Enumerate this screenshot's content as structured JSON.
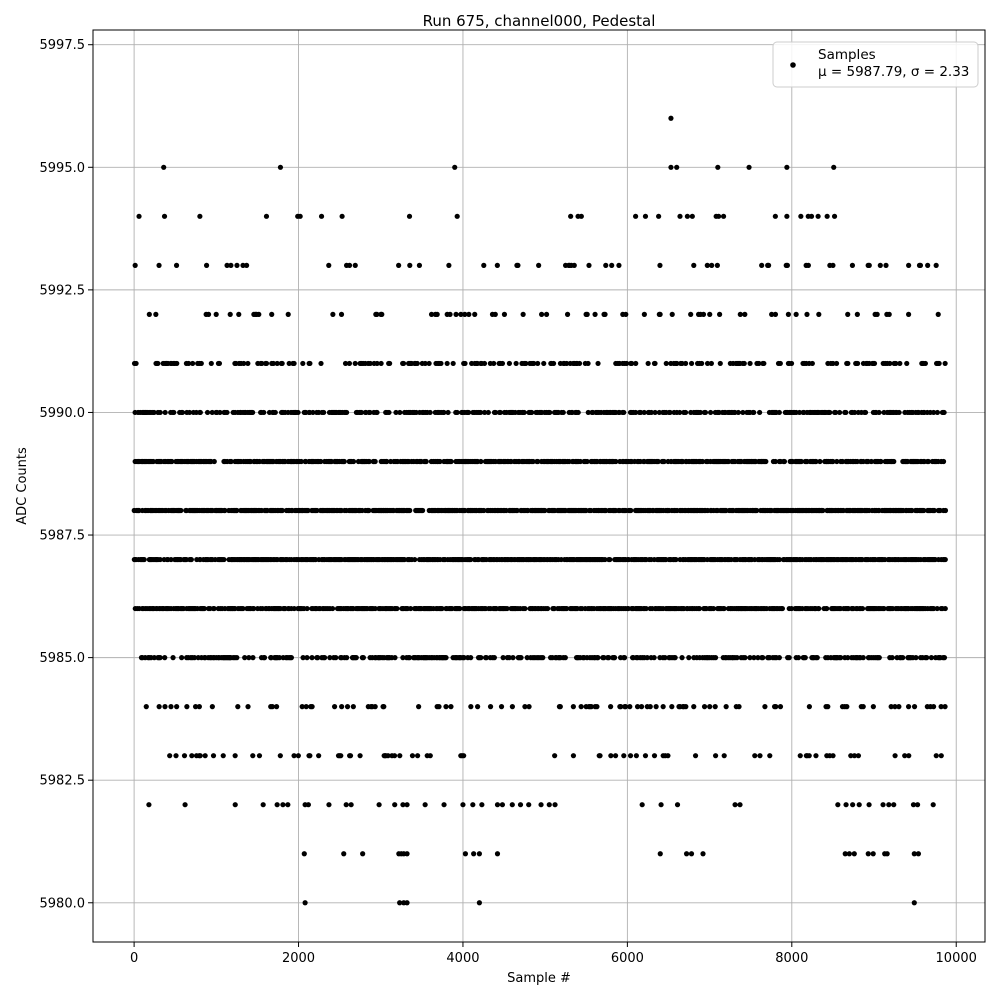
{
  "chart_data": {
    "type": "scatter",
    "title": "Run 675, channel000, Pedestal",
    "xlabel": "Sample #",
    "ylabel": "ADC Counts",
    "xlim": [
      -500,
      10350
    ],
    "ylim": [
      5979.2,
      5997.8
    ],
    "xticks": [
      0,
      2000,
      4000,
      6000,
      8000,
      10000
    ],
    "xtick_labels": [
      "0",
      "2000",
      "4000",
      "6000",
      "8000",
      "10000"
    ],
    "yticks": [
      5980.0,
      5982.5,
      5985.0,
      5987.5,
      5990.0,
      5992.5,
      5995.0,
      5997.5
    ],
    "ytick_labels": [
      "5980.0",
      "5982.5",
      "5985.0",
      "5987.5",
      "5990.0",
      "5992.5",
      "5995.0",
      "5997.5"
    ],
    "grid": true,
    "legend_position": "top-right",
    "marker_color": "#000000",
    "series": [
      {
        "name": "Samples",
        "stats_label": "μ = 5987.79, σ = 2.33",
        "x_range": [
          0,
          9870
        ],
        "points": [
          {
            "x": 2080,
            "y": 5980
          },
          {
            "x": 3230,
            "y": 5980
          },
          {
            "x": 3280,
            "y": 5980
          },
          {
            "x": 3320,
            "y": 5980
          },
          {
            "x": 4200,
            "y": 5980
          },
          {
            "x": 9490,
            "y": 5980
          },
          {
            "x": 2070,
            "y": 5981
          },
          {
            "x": 2550,
            "y": 5981
          },
          {
            "x": 2780,
            "y": 5981
          },
          {
            "x": 3220,
            "y": 5981
          },
          {
            "x": 3250,
            "y": 5981
          },
          {
            "x": 3280,
            "y": 5981
          },
          {
            "x": 3320,
            "y": 5981
          },
          {
            "x": 4030,
            "y": 5981
          },
          {
            "x": 4130,
            "y": 5981
          },
          {
            "x": 4200,
            "y": 5981
          },
          {
            "x": 4420,
            "y": 5981
          },
          {
            "x": 6400,
            "y": 5981
          },
          {
            "x": 6720,
            "y": 5981
          },
          {
            "x": 6780,
            "y": 5981
          },
          {
            "x": 6920,
            "y": 5981
          },
          {
            "x": 8650,
            "y": 5981
          },
          {
            "x": 8700,
            "y": 5981
          },
          {
            "x": 8760,
            "y": 5981
          },
          {
            "x": 8930,
            "y": 5981
          },
          {
            "x": 8990,
            "y": 5981
          },
          {
            "x": 9130,
            "y": 5981
          },
          {
            "x": 9160,
            "y": 5981
          },
          {
            "x": 9490,
            "y": 5981
          },
          {
            "x": 9540,
            "y": 5981
          },
          {
            "x": 6530,
            "y": 5996
          },
          {
            "x": 360,
            "y": 5995
          },
          {
            "x": 1780,
            "y": 5995
          },
          {
            "x": 3900,
            "y": 5995
          },
          {
            "x": 6530,
            "y": 5995
          },
          {
            "x": 6600,
            "y": 5995
          },
          {
            "x": 7100,
            "y": 5995
          },
          {
            "x": 7480,
            "y": 5995
          },
          {
            "x": 7940,
            "y": 5995
          },
          {
            "x": 8510,
            "y": 5995
          },
          {
            "x": 60,
            "y": 5994
          },
          {
            "x": 370,
            "y": 5994
          },
          {
            "x": 800,
            "y": 5994
          },
          {
            "x": 1610,
            "y": 5994
          },
          {
            "x": 1990,
            "y": 5994
          },
          {
            "x": 2020,
            "y": 5994
          },
          {
            "x": 2280,
            "y": 5994
          },
          {
            "x": 2530,
            "y": 5994
          },
          {
            "x": 3350,
            "y": 5994
          },
          {
            "x": 3930,
            "y": 5994
          },
          {
            "x": 5310,
            "y": 5994
          },
          {
            "x": 5400,
            "y": 5994
          },
          {
            "x": 5440,
            "y": 5994
          },
          {
            "x": 6100,
            "y": 5994
          },
          {
            "x": 6220,
            "y": 5994
          },
          {
            "x": 6380,
            "y": 5994
          },
          {
            "x": 6640,
            "y": 5994
          },
          {
            "x": 6730,
            "y": 5994
          },
          {
            "x": 6790,
            "y": 5994
          },
          {
            "x": 7080,
            "y": 5994
          },
          {
            "x": 7110,
            "y": 5994
          },
          {
            "x": 7170,
            "y": 5994
          },
          {
            "x": 7800,
            "y": 5994
          },
          {
            "x": 7940,
            "y": 5994
          },
          {
            "x": 8110,
            "y": 5994
          },
          {
            "x": 8200,
            "y": 5994
          },
          {
            "x": 8240,
            "y": 5994
          },
          {
            "x": 8320,
            "y": 5994
          },
          {
            "x": 8430,
            "y": 5994
          },
          {
            "x": 8520,
            "y": 5994
          },
          {
            "x": 180,
            "y": 5982
          },
          {
            "x": 620,
            "y": 5982
          },
          {
            "x": 1230,
            "y": 5982
          },
          {
            "x": 1570,
            "y": 5982
          },
          {
            "x": 1740,
            "y": 5982
          },
          {
            "x": 1810,
            "y": 5982
          },
          {
            "x": 1870,
            "y": 5982
          },
          {
            "x": 2080,
            "y": 5982
          },
          {
            "x": 2120,
            "y": 5982
          },
          {
            "x": 2370,
            "y": 5982
          },
          {
            "x": 2580,
            "y": 5982
          },
          {
            "x": 2640,
            "y": 5982
          },
          {
            "x": 2980,
            "y": 5982
          },
          {
            "x": 3170,
            "y": 5982
          },
          {
            "x": 3270,
            "y": 5982
          },
          {
            "x": 3320,
            "y": 5982
          },
          {
            "x": 3540,
            "y": 5982
          },
          {
            "x": 3770,
            "y": 5982
          },
          {
            "x": 4000,
            "y": 5982
          },
          {
            "x": 4120,
            "y": 5982
          },
          {
            "x": 4230,
            "y": 5982
          },
          {
            "x": 4420,
            "y": 5982
          },
          {
            "x": 4480,
            "y": 5982
          },
          {
            "x": 4600,
            "y": 5982
          },
          {
            "x": 4700,
            "y": 5982
          },
          {
            "x": 4800,
            "y": 5982
          },
          {
            "x": 4950,
            "y": 5982
          },
          {
            "x": 5050,
            "y": 5982
          },
          {
            "x": 5120,
            "y": 5982
          },
          {
            "x": 6180,
            "y": 5982
          },
          {
            "x": 6410,
            "y": 5982
          },
          {
            "x": 6610,
            "y": 5982
          },
          {
            "x": 7310,
            "y": 5982
          },
          {
            "x": 7370,
            "y": 5982
          },
          {
            "x": 8560,
            "y": 5982
          },
          {
            "x": 8660,
            "y": 5982
          },
          {
            "x": 8740,
            "y": 5982
          },
          {
            "x": 8820,
            "y": 5982
          },
          {
            "x": 8940,
            "y": 5982
          },
          {
            "x": 9110,
            "y": 5982
          },
          {
            "x": 9180,
            "y": 5982
          },
          {
            "x": 9240,
            "y": 5982
          },
          {
            "x": 9480,
            "y": 5982
          },
          {
            "x": 9530,
            "y": 5982
          },
          {
            "x": 9720,
            "y": 5982
          }
        ],
        "dense_levels": [
          {
            "y": 5993,
            "density": 0.06
          },
          {
            "y": 5992,
            "density": 0.09
          },
          {
            "y": 5991,
            "density": 0.25
          },
          {
            "y": 5990,
            "density": 0.4
          },
          {
            "y": 5989,
            "density": 0.55
          },
          {
            "y": 5988,
            "density": 0.7
          },
          {
            "y": 5987,
            "density": 0.7
          },
          {
            "y": 5986,
            "density": 0.6
          },
          {
            "y": 5985,
            "density": 0.35
          },
          {
            "y": 5984,
            "density": 0.14
          },
          {
            "y": 5983,
            "density": 0.07
          }
        ]
      }
    ]
  }
}
